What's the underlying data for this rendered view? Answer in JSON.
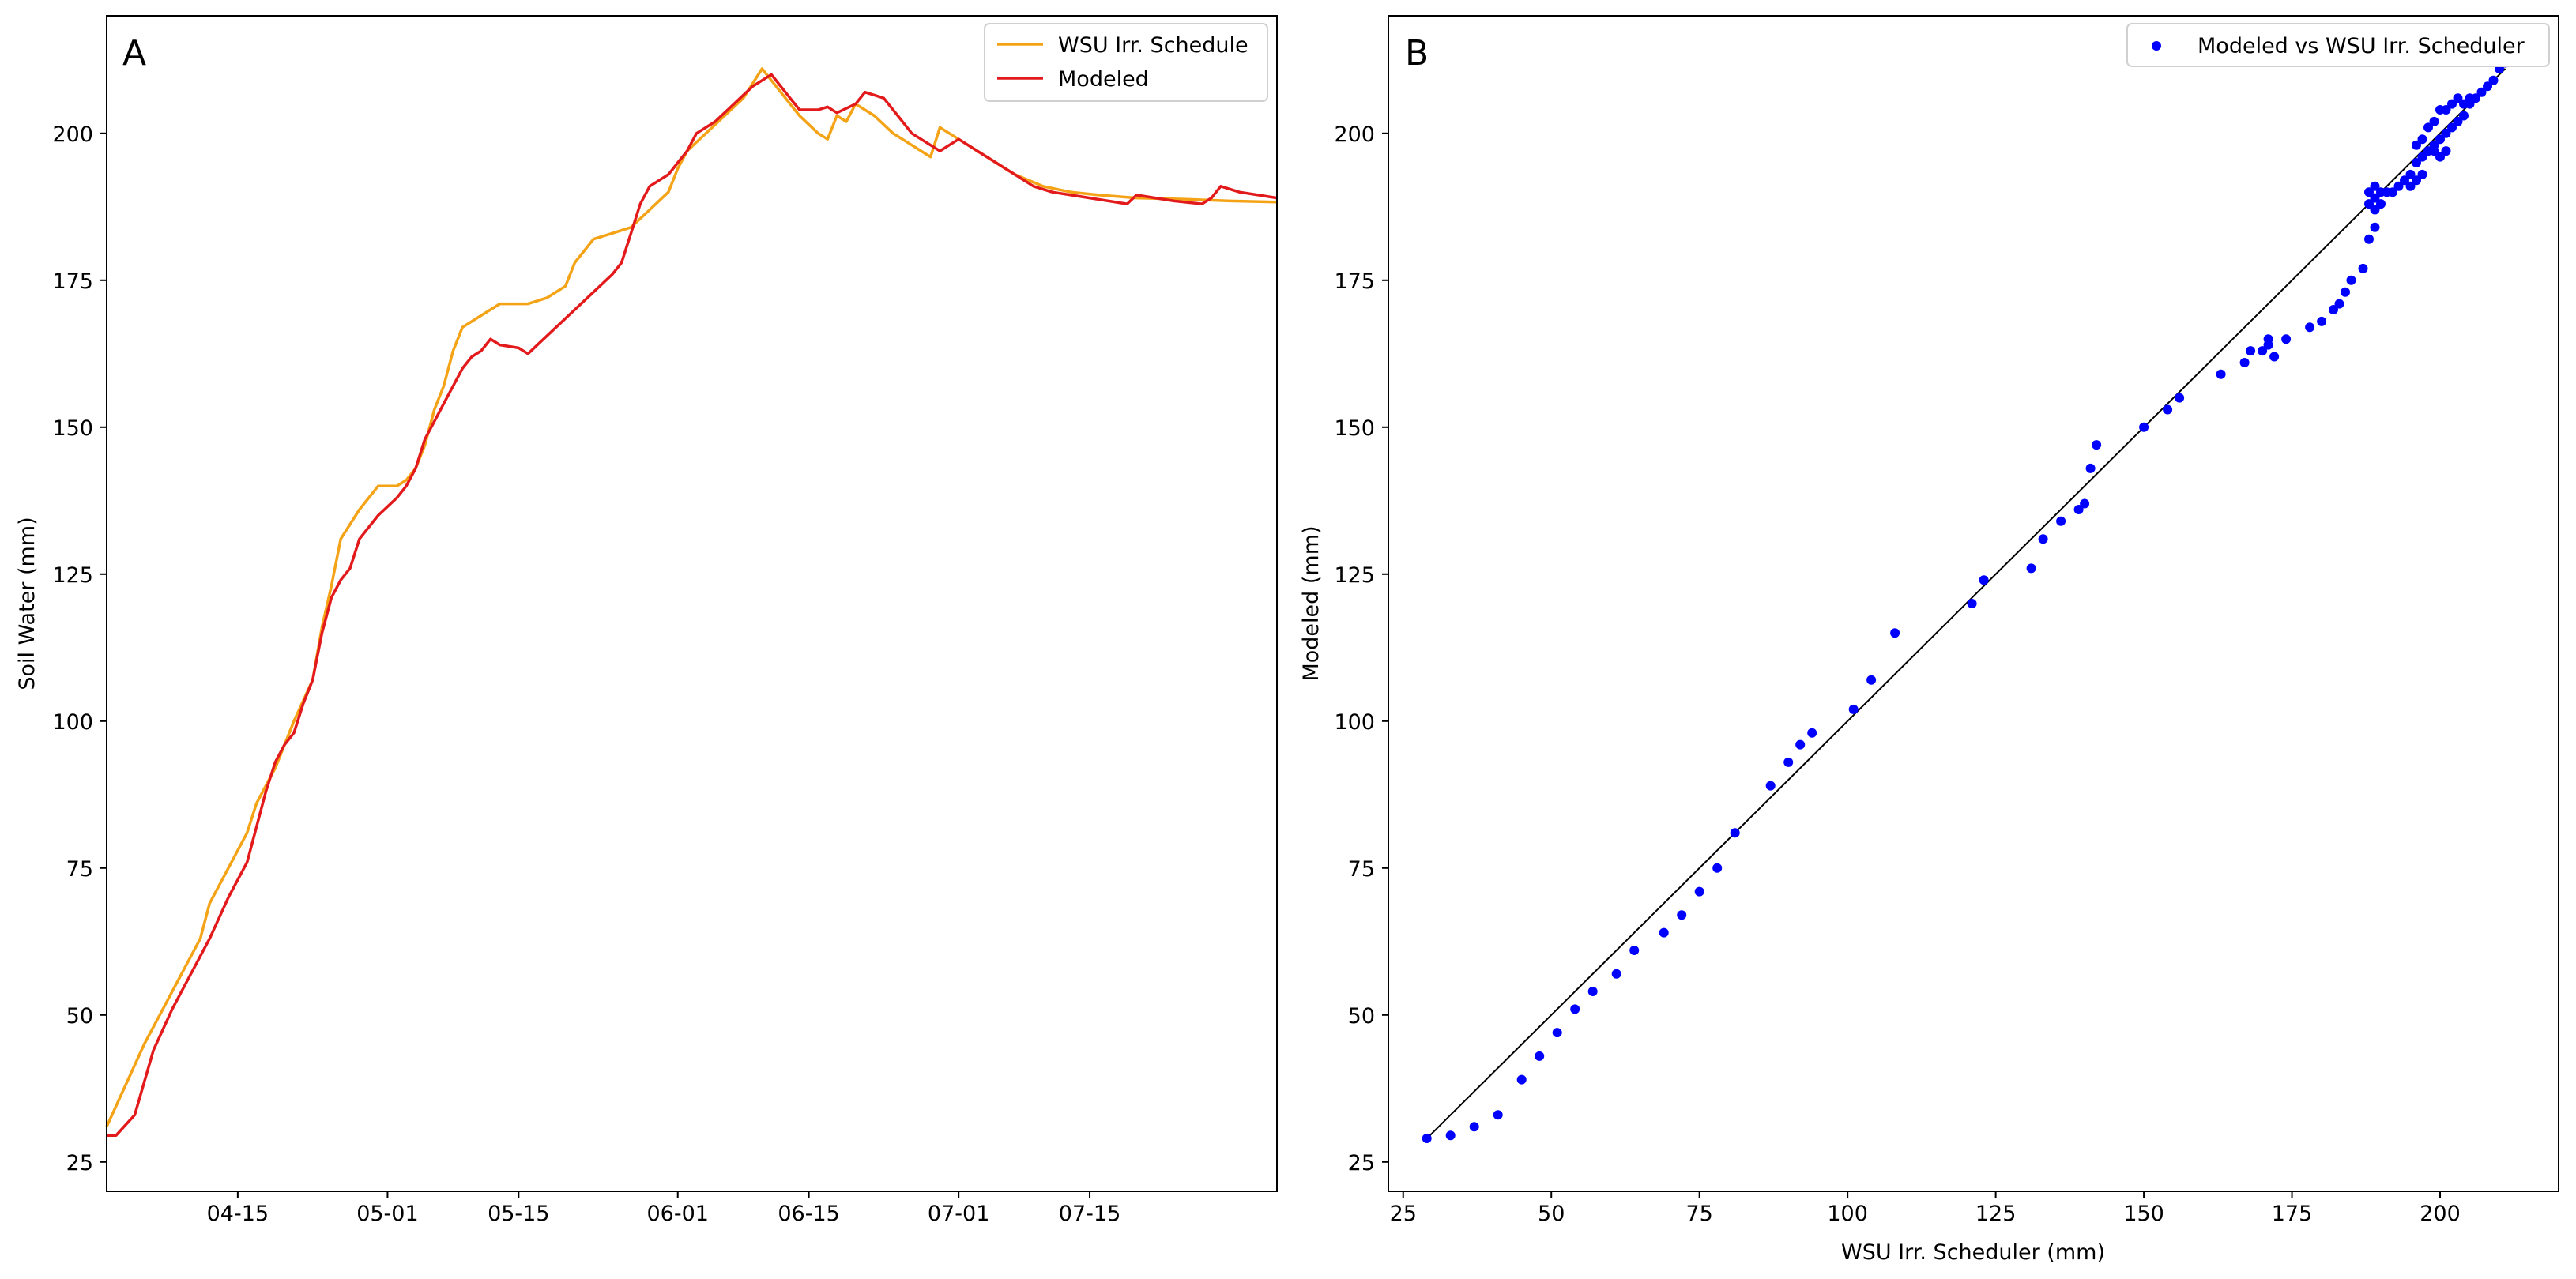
{
  "chart_data": [
    {
      "id": "A",
      "type": "line",
      "panel_label": "A",
      "xlabel": "",
      "ylabel": "Soil Water (mm)",
      "x_tick_labels": [
        "04-15",
        "05-01",
        "05-15",
        "06-01",
        "06-15",
        "07-01",
        "07-15"
      ],
      "x_tick_days": [
        14,
        30,
        44,
        61,
        75,
        91,
        105
      ],
      "xlim_days": [
        0,
        125
      ],
      "x_day0": "04-01",
      "ylim": [
        20,
        220
      ],
      "y_ticks": [
        25,
        50,
        75,
        100,
        125,
        150,
        175,
        200
      ],
      "legend": "top-right",
      "series": [
        {
          "name": "WSU Irr. Schedule",
          "color": "#f5a316",
          "points": [
            [
              0,
              31
            ],
            [
              2,
              38
            ],
            [
              4,
              45
            ],
            [
              6,
              51
            ],
            [
              8,
              57
            ],
            [
              10,
              63
            ],
            [
              11,
              69
            ],
            [
              13,
              75
            ],
            [
              15,
              81
            ],
            [
              16,
              86
            ],
            [
              17,
              89
            ],
            [
              18,
              92
            ],
            [
              20,
              100
            ],
            [
              22,
              107
            ],
            [
              23,
              116
            ],
            [
              24,
              123
            ],
            [
              25,
              131
            ],
            [
              27,
              136
            ],
            [
              29,
              140
            ],
            [
              31,
              140
            ],
            [
              32,
              141
            ],
            [
              33,
              143
            ],
            [
              34,
              147
            ],
            [
              35,
              153
            ],
            [
              36,
              157
            ],
            [
              37,
              163
            ],
            [
              38,
              167
            ],
            [
              40,
              169
            ],
            [
              42,
              171
            ],
            [
              45,
              171
            ],
            [
              47,
              172
            ],
            [
              49,
              174
            ],
            [
              50,
              178
            ],
            [
              52,
              182
            ],
            [
              54,
              183
            ],
            [
              56,
              184
            ],
            [
              58,
              187
            ],
            [
              60,
              190
            ],
            [
              61,
              194
            ],
            [
              62,
              197
            ],
            [
              64,
              200
            ],
            [
              66,
              203
            ],
            [
              68,
              206
            ],
            [
              70,
              211
            ],
            [
              71,
              209
            ],
            [
              72,
              207
            ],
            [
              74,
              203
            ],
            [
              76,
              200
            ],
            [
              77,
              199
            ],
            [
              78,
              203
            ],
            [
              79,
              202
            ],
            [
              80,
              205
            ],
            [
              82,
              203
            ],
            [
              84,
              200
            ],
            [
              86,
              198
            ],
            [
              88,
              196
            ],
            [
              89,
              201
            ],
            [
              91,
              199
            ],
            [
              93,
              197
            ],
            [
              95,
              195
            ],
            [
              97,
              193
            ],
            [
              100,
              191
            ],
            [
              103,
              190
            ],
            [
              106,
              189.5
            ],
            [
              110,
              189
            ],
            [
              115,
              188.8
            ],
            [
              120,
              188.5
            ],
            [
              125,
              188.3
            ]
          ]
        },
        {
          "name": "Modeled",
          "color": "#e31a1c",
          "points": [
            [
              0,
              29.5
            ],
            [
              1,
              29.5
            ],
            [
              3,
              33
            ],
            [
              5,
              44
            ],
            [
              7,
              51
            ],
            [
              9,
              57
            ],
            [
              11,
              63
            ],
            [
              13,
              70
            ],
            [
              15,
              76
            ],
            [
              16,
              82
            ],
            [
              17,
              88
            ],
            [
              18,
              93
            ],
            [
              19,
              96
            ],
            [
              20,
              98
            ],
            [
              21,
              103
            ],
            [
              22,
              107
            ],
            [
              23,
              115
            ],
            [
              24,
              121
            ],
            [
              25,
              124
            ],
            [
              26,
              126
            ],
            [
              27,
              131
            ],
            [
              29,
              135
            ],
            [
              31,
              138
            ],
            [
              32,
              140
            ],
            [
              33,
              143
            ],
            [
              34,
              148
            ],
            [
              35,
              151
            ],
            [
              36,
              154
            ],
            [
              37,
              157
            ],
            [
              38,
              160
            ],
            [
              39,
              162
            ],
            [
              40,
              163
            ],
            [
              41,
              165
            ],
            [
              42,
              164
            ],
            [
              44,
              163.5
            ],
            [
              45,
              162.5
            ],
            [
              46,
              164
            ],
            [
              48,
              167
            ],
            [
              50,
              170
            ],
            [
              52,
              173
            ],
            [
              54,
              176
            ],
            [
              55,
              178
            ],
            [
              56,
              183
            ],
            [
              57,
              188
            ],
            [
              58,
              191
            ],
            [
              60,
              193
            ],
            [
              61,
              195
            ],
            [
              62,
              197
            ],
            [
              63,
              200
            ],
            [
              65,
              202
            ],
            [
              67,
              205
            ],
            [
              69,
              208
            ],
            [
              71,
              210
            ],
            [
              73,
              206
            ],
            [
              74,
              204
            ],
            [
              76,
              204
            ],
            [
              77,
              204.5
            ],
            [
              78,
              203.5
            ],
            [
              80,
              205
            ],
            [
              81,
              207
            ],
            [
              83,
              206
            ],
            [
              84,
              204
            ],
            [
              86,
              200
            ],
            [
              88,
              198
            ],
            [
              89,
              197
            ],
            [
              90,
              198
            ],
            [
              91,
              199
            ],
            [
              93,
              197
            ],
            [
              95,
              195
            ],
            [
              97,
              193
            ],
            [
              99,
              191
            ],
            [
              101,
              190
            ],
            [
              103,
              189.5
            ],
            [
              105,
              189
            ],
            [
              107,
              188.5
            ],
            [
              109,
              188
            ],
            [
              110,
              189.5
            ],
            [
              112,
              189
            ],
            [
              114,
              188.5
            ],
            [
              117,
              188
            ],
            [
              118,
              189
            ],
            [
              119,
              191
            ],
            [
              121,
              190
            ],
            [
              123,
              189.5
            ],
            [
              125,
              189
            ]
          ]
        }
      ]
    },
    {
      "id": "B",
      "type": "scatter",
      "panel_label": "B",
      "xlabel": "WSU Irr. Scheduler (mm)",
      "ylabel": "Modeled (mm)",
      "xlim": [
        22.5,
        220
      ],
      "ylim": [
        20,
        220
      ],
      "x_ticks": [
        25,
        50,
        75,
        100,
        125,
        150,
        175,
        200
      ],
      "y_ticks": [
        25,
        50,
        75,
        100,
        125,
        150,
        175,
        200
      ],
      "legend": "top-right",
      "reference_line": {
        "from": [
          29,
          29
        ],
        "to": [
          211,
          211
        ],
        "color": "#000000"
      },
      "series": [
        {
          "name": "Modeled vs WSU Irr. Scheduler",
          "color": "#0000ff",
          "points": [
            [
              29,
              29
            ],
            [
              33,
              29.5
            ],
            [
              37,
              31
            ],
            [
              41,
              33
            ],
            [
              45,
              39
            ],
            [
              48,
              43
            ],
            [
              51,
              47
            ],
            [
              54,
              51
            ],
            [
              57,
              54
            ],
            [
              61,
              57
            ],
            [
              64,
              61
            ],
            [
              69,
              64
            ],
            [
              72,
              67
            ],
            [
              75,
              71
            ],
            [
              78,
              75
            ],
            [
              81,
              81
            ],
            [
              87,
              89
            ],
            [
              90,
              93
            ],
            [
              92,
              96
            ],
            [
              94,
              98
            ],
            [
              101,
              102
            ],
            [
              104,
              107
            ],
            [
              108,
              115
            ],
            [
              121,
              120
            ],
            [
              123,
              124
            ],
            [
              131,
              126
            ],
            [
              133,
              131
            ],
            [
              136,
              134
            ],
            [
              139,
              136
            ],
            [
              140,
              137
            ],
            [
              141,
              143
            ],
            [
              142,
              147
            ],
            [
              150,
              150
            ],
            [
              154,
              153
            ],
            [
              156,
              155
            ],
            [
              163,
              159
            ],
            [
              167,
              161
            ],
            [
              168,
              163
            ],
            [
              170,
              163
            ],
            [
              171,
              164
            ],
            [
              171,
              165
            ],
            [
              172,
              162
            ],
            [
              174,
              165
            ],
            [
              178,
              167
            ],
            [
              180,
              168
            ],
            [
              182,
              170
            ],
            [
              183,
              171
            ],
            [
              184,
              173
            ],
            [
              185,
              175
            ],
            [
              187,
              177
            ],
            [
              188,
              182
            ],
            [
              189,
              184
            ],
            [
              189,
              187
            ],
            [
              188,
              188
            ],
            [
              189,
              189
            ],
            [
              190,
              188
            ],
            [
              188,
              190
            ],
            [
              189,
              191
            ],
            [
              190,
              190
            ],
            [
              191,
              190
            ],
            [
              192,
              190
            ],
            [
              193,
              191
            ],
            [
              194,
              192
            ],
            [
              195,
              193
            ],
            [
              196,
              195
            ],
            [
              197,
              196
            ],
            [
              198,
              197
            ],
            [
              199,
              198
            ],
            [
              200,
              199
            ],
            [
              201,
              200
            ],
            [
              202,
              201
            ],
            [
              203,
              202
            ],
            [
              204,
              203
            ],
            [
              205,
              205
            ],
            [
              206,
              206
            ],
            [
              207,
              207
            ],
            [
              208,
              208
            ],
            [
              209,
              209
            ],
            [
              210,
              211
            ],
            [
              211,
              212
            ],
            [
              196,
              198
            ],
            [
              197,
              199
            ],
            [
              198,
              201
            ],
            [
              199,
              202
            ],
            [
              200,
              204
            ],
            [
              201,
              204
            ],
            [
              202,
              205
            ],
            [
              203,
              206
            ],
            [
              204,
              205
            ],
            [
              205,
              206
            ],
            [
              199,
              197
            ],
            [
              200,
              196
            ],
            [
              201,
              197
            ],
            [
              195,
              191
            ],
            [
              196,
              192
            ],
            [
              197,
              193
            ]
          ]
        }
      ]
    }
  ]
}
